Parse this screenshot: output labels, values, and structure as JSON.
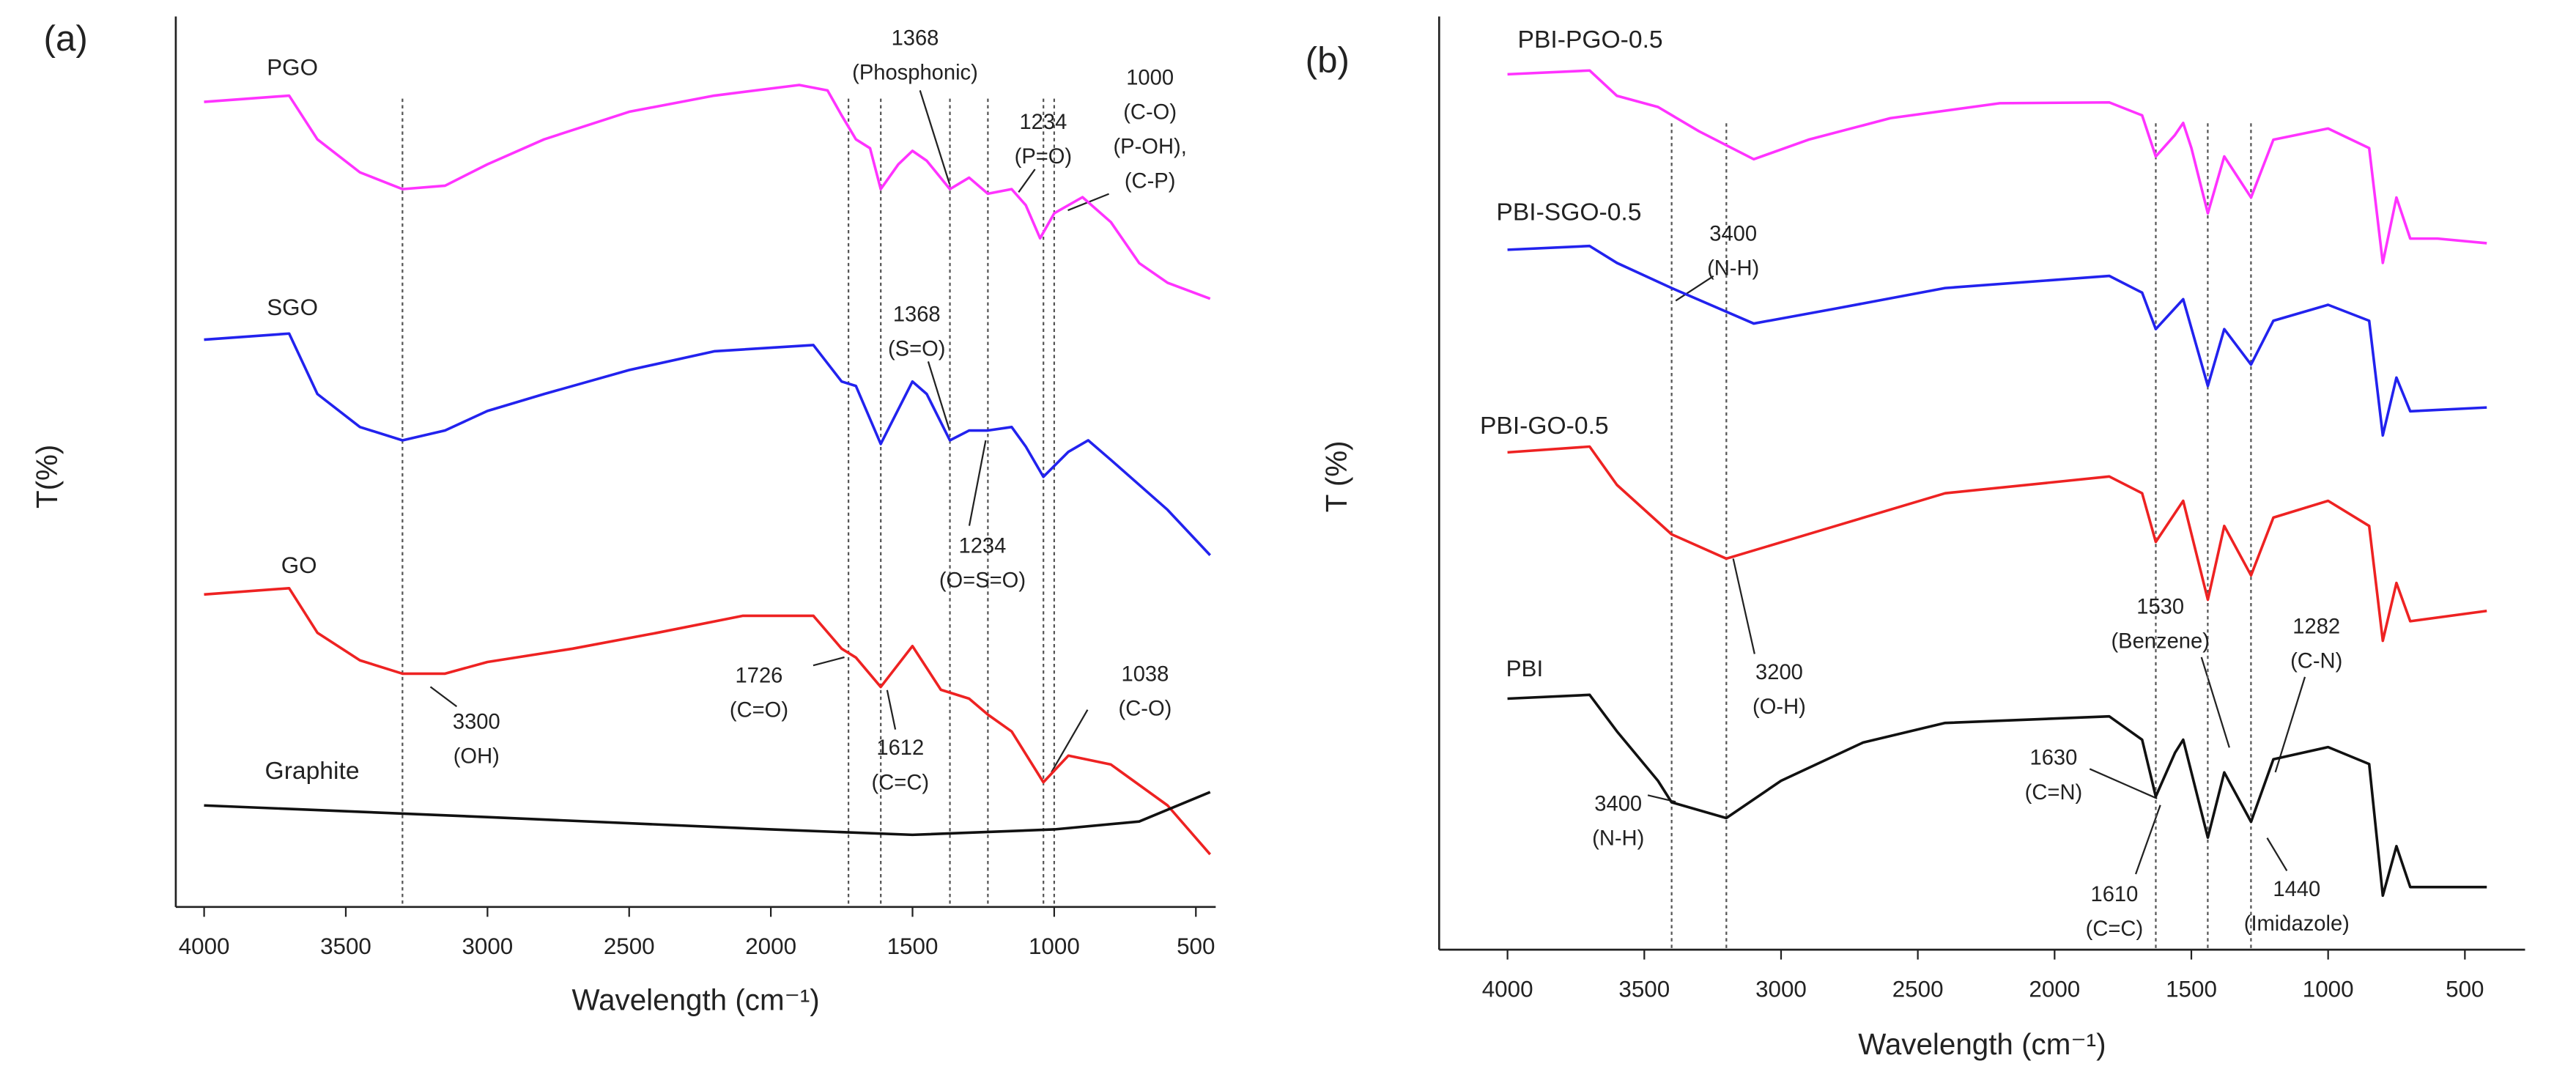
{
  "chart_data": [
    {
      "type": "line",
      "panel_label": "(a)",
      "xlabel": "Wavelength (cm⁻¹)",
      "ylabel": "T(%)",
      "xlim": [
        4100,
        430
      ],
      "xticks": [
        4000,
        3500,
        3000,
        2500,
        2000,
        1500,
        1000,
        500
      ],
      "ylim": [
        0,
        100
      ],
      "series": [
        {
          "name": "PGO",
          "color": "#ff33ff",
          "x": [
            4000,
            3700,
            3600,
            3450,
            3300,
            3150,
            3000,
            2800,
            2500,
            2200,
            1900,
            1800,
            1750,
            1700,
            1650,
            1612,
            1550,
            1500,
            1450,
            1368,
            1300,
            1234,
            1150,
            1100,
            1050,
            1000,
            900,
            800,
            700,
            600,
            450
          ],
          "values": [
            90.4,
            91.1,
            86.2,
            82.5,
            80.6,
            81,
            83.4,
            86.2,
            89.3,
            91.1,
            92.3,
            91.7,
            88.9,
            86.2,
            85.2,
            80.6,
            83.4,
            84.9,
            83.8,
            80.6,
            81.9,
            80.1,
            80.6,
            78.8,
            75.1,
            77.9,
            79.7,
            76.9,
            72.3,
            70.1,
            68.3
          ]
        },
        {
          "name": "SGO",
          "color": "#2222ee",
          "x": [
            4000,
            3700,
            3600,
            3450,
            3300,
            3150,
            3000,
            2800,
            2500,
            2200,
            1850,
            1750,
            1700,
            1612,
            1500,
            1450,
            1368,
            1300,
            1234,
            1150,
            1100,
            1038,
            950,
            880,
            800,
            600,
            450
          ],
          "values": [
            63.7,
            64.4,
            57.6,
            53.9,
            52.4,
            53.5,
            55.7,
            57.6,
            60.3,
            62.4,
            63.1,
            59,
            58.5,
            52,
            59,
            57.6,
            52.4,
            53.5,
            53.5,
            53.9,
            51.7,
            48.3,
            51.1,
            52.4,
            50.2,
            44.6,
            39.5
          ]
        },
        {
          "name": "GO",
          "color": "#ee2222",
          "x": [
            4000,
            3700,
            3600,
            3450,
            3300,
            3150,
            3000,
            2700,
            2400,
            2100,
            1850,
            1750,
            1700,
            1612,
            1500,
            1400,
            1300,
            1234,
            1150,
            1038,
            950,
            800,
            600,
            450
          ],
          "values": [
            35.1,
            35.8,
            30.8,
            27.7,
            26.2,
            26.2,
            27.5,
            29,
            30.8,
            32.7,
            32.7,
            29,
            28,
            24.7,
            29.3,
            24.4,
            23.4,
            21.6,
            19.7,
            14,
            17,
            16,
            11.4,
            5.9
          ]
        },
        {
          "name": "Graphite",
          "color": "#111111",
          "x": [
            4000,
            3000,
            2000,
            1500,
            1000,
            700,
            450
          ],
          "values": [
            11.4,
            10.1,
            8.7,
            8.1,
            8.7,
            9.6,
            12.9
          ]
        }
      ],
      "reference_lines": [
        3300,
        1726,
        1612,
        1368,
        1234,
        1038,
        1000
      ],
      "annotations": [
        {
          "label": [
            "1368",
            "(Phosphonic)"
          ]
        },
        {
          "label": [
            "1234",
            "(P=O)"
          ]
        },
        {
          "label": [
            "1000",
            "(C-O)",
            "(P-OH),",
            "(C-P)"
          ]
        },
        {
          "label": [
            "1368",
            "(S=O)"
          ]
        },
        {
          "label": [
            "1234",
            "(O=S=O)"
          ]
        },
        {
          "label": [
            "3300",
            "(OH)"
          ]
        },
        {
          "label": [
            "1726",
            "(C=O)"
          ]
        },
        {
          "label": [
            "1612",
            "(C=C)"
          ]
        },
        {
          "label": [
            "1038",
            "(C-O)"
          ]
        }
      ]
    },
    {
      "type": "line",
      "panel_label": "(b)",
      "xlabel": "Wavelength (cm⁻¹)",
      "ylabel": "T (%)",
      "xlim": [
        4250,
        280
      ],
      "xticks": [
        4000,
        3500,
        3000,
        2500,
        2000,
        1500,
        1000,
        500
      ],
      "ylim": [
        0,
        100
      ],
      "series": [
        {
          "name": "PBI-PGO-0.5",
          "color": "#ff33ff",
          "x": [
            4000,
            3700,
            3600,
            3450,
            3300,
            3100,
            2900,
            2600,
            2200,
            1800,
            1680,
            1630,
            1560,
            1530,
            1500,
            1440,
            1380,
            1282,
            1200,
            1000,
            850,
            800,
            750,
            700,
            600,
            420
          ],
          "values": [
            93.8,
            94.2,
            91.5,
            90.3,
            87.7,
            84.7,
            86.8,
            89.1,
            90.7,
            90.8,
            89.4,
            85,
            87.3,
            88.6,
            85.9,
            78.9,
            85,
            80.6,
            86.8,
            88,
            85.9,
            73.6,
            80.6,
            76.2,
            76.2,
            75.7
          ]
        },
        {
          "name": "PBI-SGO-0.5",
          "color": "#2222ee",
          "x": [
            4000,
            3700,
            3600,
            3400,
            3100,
            2800,
            2400,
            1800,
            1680,
            1630,
            1530,
            1440,
            1380,
            1282,
            1200,
            1000,
            850,
            800,
            750,
            700,
            420
          ],
          "values": [
            75,
            75.4,
            73.6,
            70.9,
            67.1,
            68.7,
            70.9,
            72.2,
            70.4,
            66.5,
            69.7,
            60.4,
            66.5,
            62.7,
            67.4,
            69.1,
            67.4,
            55.1,
            61.3,
            57.7,
            58.1
          ]
        },
        {
          "name": "PBI-GO-0.5",
          "color": "#ee2222",
          "x": [
            4000,
            3700,
            3600,
            3400,
            3200,
            2800,
            2400,
            1800,
            1680,
            1630,
            1530,
            1440,
            1380,
            1282,
            1200,
            1000,
            850,
            800,
            750,
            700,
            420
          ],
          "values": [
            53.3,
            53.9,
            49.8,
            44.5,
            41.9,
            45.4,
            48.9,
            50.7,
            48.9,
            43.7,
            48.1,
            37.5,
            45.4,
            40.1,
            46.3,
            48.1,
            45.4,
            33.1,
            39.3,
            35.2,
            36.3
          ]
        },
        {
          "name": "PBI",
          "color": "#111111",
          "x": [
            4000,
            3700,
            3600,
            3450,
            3400,
            3200,
            3000,
            2700,
            2400,
            1800,
            1680,
            1630,
            1560,
            1530,
            1440,
            1380,
            1282,
            1200,
            1000,
            850,
            800,
            750,
            700,
            420
          ],
          "values": [
            26.9,
            27.3,
            23.4,
            18.1,
            15.8,
            14.1,
            18.1,
            22.2,
            24.3,
            25,
            22.5,
            16.4,
            21.1,
            22.5,
            12,
            19,
            13.7,
            20.4,
            21.7,
            19.9,
            5.8,
            11.1,
            6.7,
            6.7
          ]
        }
      ],
      "reference_lines": [
        3400,
        3200,
        1630,
        1440,
        1282
      ],
      "annotations": [
        {
          "label": [
            "3400",
            "(N-H)"
          ]
        },
        {
          "label": [
            "3200",
            "(O-H)"
          ]
        },
        {
          "label": [
            "3400",
            "(N-H)"
          ]
        },
        {
          "label": [
            "1630",
            "(C=N)"
          ]
        },
        {
          "label": [
            "1530",
            "(Benzene)"
          ]
        },
        {
          "label": [
            "1282",
            "(C-N)"
          ]
        },
        {
          "label": [
            "1610",
            "(C=C)"
          ]
        },
        {
          "label": [
            "1440",
            "(Imidazole)"
          ]
        }
      ]
    }
  ]
}
